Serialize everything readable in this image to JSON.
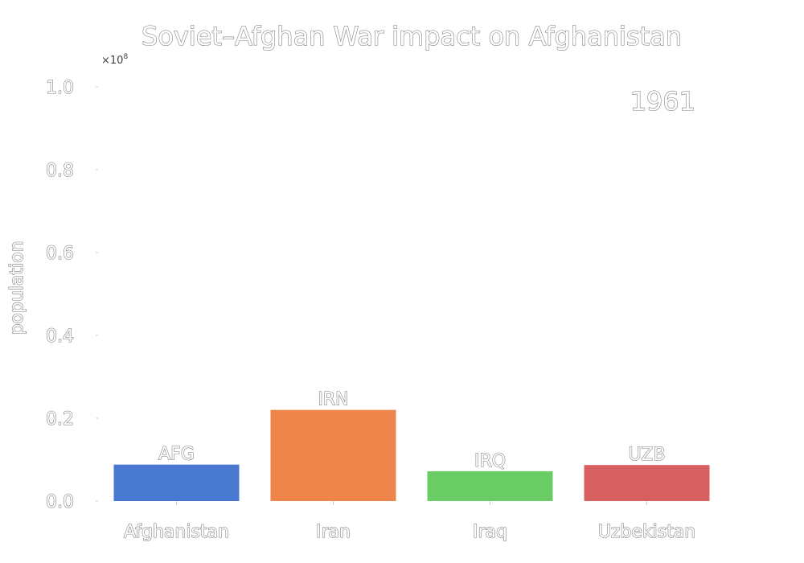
{
  "chart_data": {
    "type": "bar",
    "title": "Soviet–Afghan War impact on Afghanistan",
    "ylabel": "population",
    "xlabel": "",
    "year_label": "1961",
    "y_multiplier_label": "×10",
    "y_multiplier_exponent": "8",
    "ylim": [
      0,
      1.05
    ],
    "yticks": [
      "0.0",
      "0.2",
      "0.4",
      "0.6",
      "0.8",
      "1.0"
    ],
    "categories": [
      "Afghanistan",
      "Iran",
      "Iraq",
      "Uzbekistan"
    ],
    "codes": [
      "AFG",
      "IRN",
      "IRQ",
      "UZB"
    ],
    "values": [
      0.088,
      0.22,
      0.072,
      0.087
    ],
    "colors": [
      "#4878cf",
      "#ee854a",
      "#6acc65",
      "#d65f5f"
    ],
    "grid": false
  }
}
